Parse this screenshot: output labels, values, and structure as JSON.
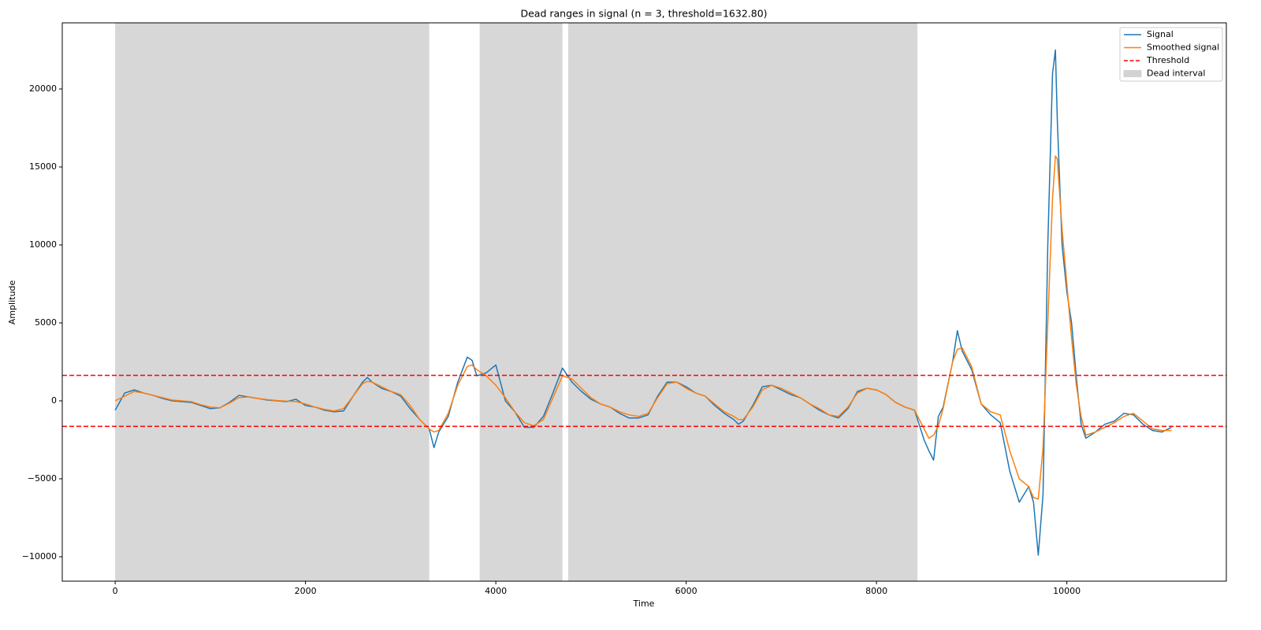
{
  "chart_data": {
    "type": "line",
    "title": "Dead ranges in signal (n = 3, threshold=1632.80)",
    "x_label": "Time",
    "y_label": "Amplitude",
    "x": [
      0,
      100,
      200,
      300,
      400,
      500,
      600,
      700,
      800,
      900,
      1000,
      1100,
      1200,
      1300,
      1400,
      1500,
      1600,
      1700,
      1800,
      1900,
      2000,
      2100,
      2200,
      2300,
      2400,
      2500,
      2600,
      2650,
      2700,
      2800,
      2900,
      3000,
      3100,
      3200,
      3300,
      3350,
      3400,
      3500,
      3600,
      3700,
      3750,
      3800,
      3900,
      4000,
      4100,
      4200,
      4300,
      4400,
      4500,
      4600,
      4700,
      4800,
      4900,
      5000,
      5100,
      5200,
      5300,
      5400,
      5500,
      5600,
      5700,
      5800,
      5900,
      6000,
      6100,
      6200,
      6300,
      6400,
      6500,
      6550,
      6600,
      6700,
      6800,
      6900,
      7000,
      7100,
      7200,
      7300,
      7400,
      7500,
      7600,
      7700,
      7800,
      7900,
      8000,
      8100,
      8200,
      8300,
      8400,
      8500,
      8550,
      8600,
      8650,
      8700,
      8800,
      8850,
      8900,
      9000,
      9100,
      9200,
      9300,
      9400,
      9500,
      9600,
      9650,
      9700,
      9750,
      9800,
      9850,
      9880,
      9900,
      9950,
      10000,
      10050,
      10100,
      10150,
      10200,
      10300,
      10400,
      10500,
      10600,
      10700,
      10800,
      10900,
      11000,
      11100
    ],
    "series": [
      {
        "name": "Signal",
        "color": "#1f77b4",
        "values": [
          -600,
          500,
          700,
          500,
          350,
          150,
          0,
          -50,
          -100,
          -300,
          -500,
          -450,
          -100,
          350,
          250,
          150,
          50,
          0,
          -50,
          100,
          -300,
          -400,
          -600,
          -700,
          -650,
          300,
          1200,
          1500,
          1200,
          800,
          600,
          300,
          -500,
          -1200,
          -1800,
          -3000,
          -2000,
          -1000,
          1200,
          2800,
          2600,
          1600,
          1800,
          2300,
          0,
          -700,
          -1700,
          -1700,
          -1000,
          500,
          2100,
          1200,
          600,
          100,
          -200,
          -400,
          -800,
          -1100,
          -1100,
          -900,
          300,
          1200,
          1200,
          900,
          500,
          300,
          -300,
          -800,
          -1200,
          -1500,
          -1300,
          -300,
          900,
          1000,
          700,
          400,
          200,
          -200,
          -600,
          -900,
          -1100,
          -500,
          600,
          800,
          700,
          400,
          -100,
          -400,
          -600,
          -2500,
          -3200,
          -3800,
          -1000,
          -400,
          2500,
          4500,
          3200,
          2000,
          -200,
          -900,
          -1400,
          -4500,
          -6500,
          -5500,
          -6500,
          -9900,
          -6000,
          10000,
          21000,
          22500,
          18000,
          10000,
          7000,
          5000,
          1500,
          -1500,
          -2400,
          -2000,
          -1500,
          -1300,
          -800,
          -900,
          -1500,
          -1900,
          -2000,
          -1700
        ]
      },
      {
        "name": "Smoothed signal",
        "color": "#ff7f0e",
        "values": [
          0,
          300,
          600,
          500,
          350,
          200,
          50,
          0,
          -50,
          -250,
          -400,
          -450,
          -150,
          200,
          250,
          150,
          80,
          20,
          -20,
          -50,
          -200,
          -400,
          -550,
          -650,
          -500,
          300,
          1100,
          1250,
          1200,
          900,
          600,
          400,
          -300,
          -1200,
          -1800,
          -2000,
          -1900,
          -800,
          1000,
          2200,
          2300,
          2000,
          1600,
          1000,
          200,
          -700,
          -1400,
          -1600,
          -1200,
          200,
          1600,
          1400,
          800,
          200,
          -200,
          -400,
          -700,
          -900,
          -1000,
          -800,
          200,
          1100,
          1200,
          800,
          500,
          300,
          -200,
          -700,
          -1000,
          -1200,
          -1200,
          -400,
          700,
          1000,
          800,
          500,
          200,
          -200,
          -500,
          -900,
          -1000,
          -400,
          500,
          800,
          700,
          400,
          -100,
          -400,
          -600,
          -1800,
          -2400,
          -2200,
          -1600,
          -500,
          2500,
          3300,
          3400,
          2200,
          -200,
          -700,
          -900,
          -3200,
          -5000,
          -5500,
          -6200,
          -6300,
          -3000,
          5000,
          13000,
          15700,
          15500,
          11000,
          7500,
          4000,
          1000,
          -1000,
          -2200,
          -2000,
          -1700,
          -1400,
          -1000,
          -800,
          -1300,
          -1800,
          -1900,
          -1900
        ]
      }
    ],
    "hlines": {
      "name": "Threshold",
      "color": "#ff0000",
      "values": [
        1632.8,
        -1632.8
      ]
    },
    "spans": {
      "name": "Dead interval",
      "color": "#d3d3d3",
      "intervals": [
        [
          0,
          3300
        ],
        [
          3830,
          4700
        ],
        [
          4760,
          8430
        ]
      ]
    },
    "xlim": [
      -556,
      11676
    ],
    "ylim": [
      -11566,
      24242
    ],
    "xticks": [
      0,
      2000,
      4000,
      6000,
      8000,
      10000
    ],
    "yticks": [
      {
        "value": -10000,
        "label": "−10000"
      },
      {
        "value": -5000,
        "label": "−5000"
      },
      0,
      5000,
      10000,
      15000,
      20000
    ],
    "grid": false,
    "legend": "upper right"
  }
}
